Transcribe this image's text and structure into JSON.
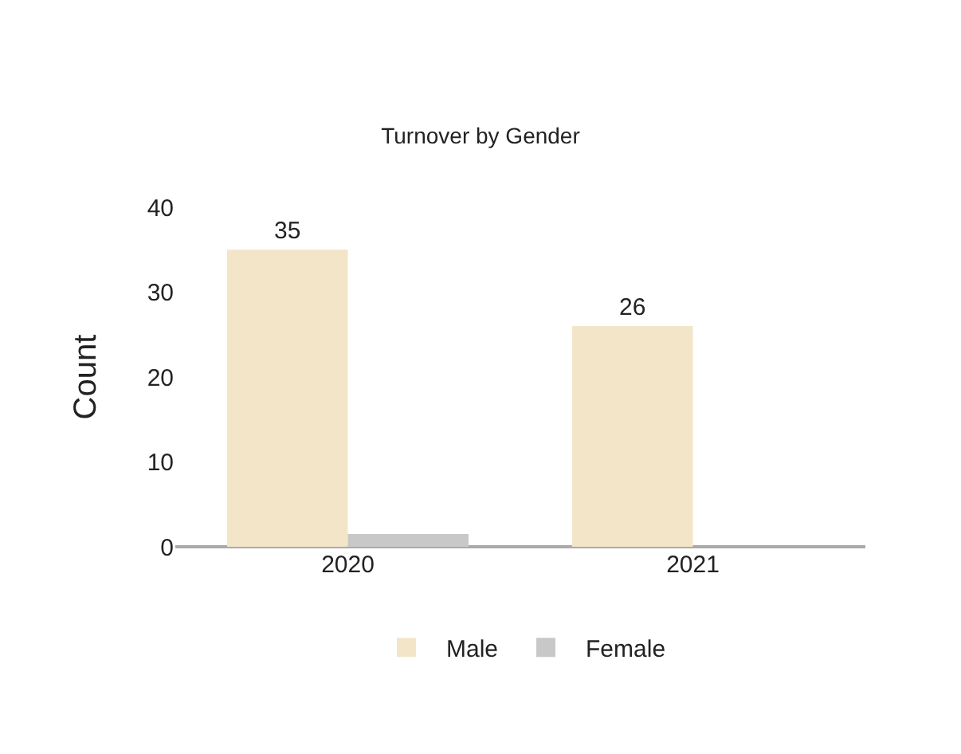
{
  "chart_data": {
    "type": "bar",
    "title": "Turnover by Gender",
    "ylabel": "Count",
    "categories": [
      "2020",
      "2021"
    ],
    "series": [
      {
        "name": "Male",
        "color": "#f3e6c8",
        "values": [
          35,
          26
        ],
        "value_labels": [
          "35",
          "26"
        ]
      },
      {
        "name": "Female",
        "color": "#c8c8c8",
        "values": [
          1.5,
          0
        ]
      }
    ],
    "ylim": [
      0,
      40
    ],
    "yticks": [
      0,
      10,
      20,
      30,
      40
    ],
    "grid": false,
    "legend": "bottom"
  }
}
